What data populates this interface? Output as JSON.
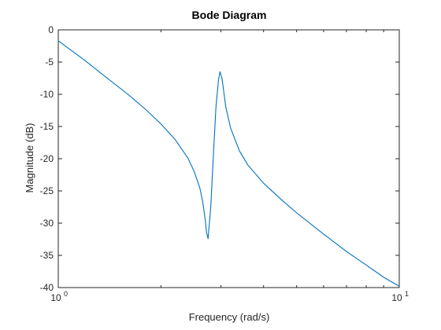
{
  "chart_data": {
    "type": "line",
    "title": "Bode Diagram",
    "xlabel": "Frequency (rad/s)",
    "ylabel": "Magnitude (dB)",
    "xscale": "log",
    "xlim": [
      1,
      10
    ],
    "ylim": [
      -40,
      0
    ],
    "grid": false,
    "line_color": "#0072BD",
    "x_ticks": [
      {
        "value": 1,
        "base": "10",
        "exp": "0"
      },
      {
        "value": 10,
        "base": "10",
        "exp": "1"
      }
    ],
    "y_ticks": [
      0,
      -5,
      -10,
      -15,
      -20,
      -25,
      -30,
      -35,
      -40
    ],
    "series": [
      {
        "x": [
          1.0,
          1.2,
          1.4,
          1.6,
          1.8,
          2.0,
          2.2,
          2.4,
          2.5,
          2.6,
          2.65,
          2.7,
          2.72,
          2.75,
          2.8,
          2.85,
          2.9,
          2.95,
          2.98,
          3.02,
          3.1,
          3.2,
          3.4,
          3.6,
          4.0,
          4.5,
          5.0,
          6.0,
          7.0,
          8.0,
          9.0,
          10.0
        ],
        "y": [
          -1.7,
          -4.8,
          -7.6,
          -10.0,
          -12.3,
          -14.6,
          -17.0,
          -19.9,
          -21.9,
          -24.5,
          -26.6,
          -29.6,
          -31.4,
          -32.4,
          -27.5,
          -19.5,
          -12.0,
          -7.8,
          -6.5,
          -7.5,
          -12.0,
          -15.2,
          -18.8,
          -21.0,
          -23.8,
          -26.3,
          -28.4,
          -31.7,
          -34.4,
          -36.5,
          -38.4,
          -39.8
        ]
      }
    ]
  }
}
